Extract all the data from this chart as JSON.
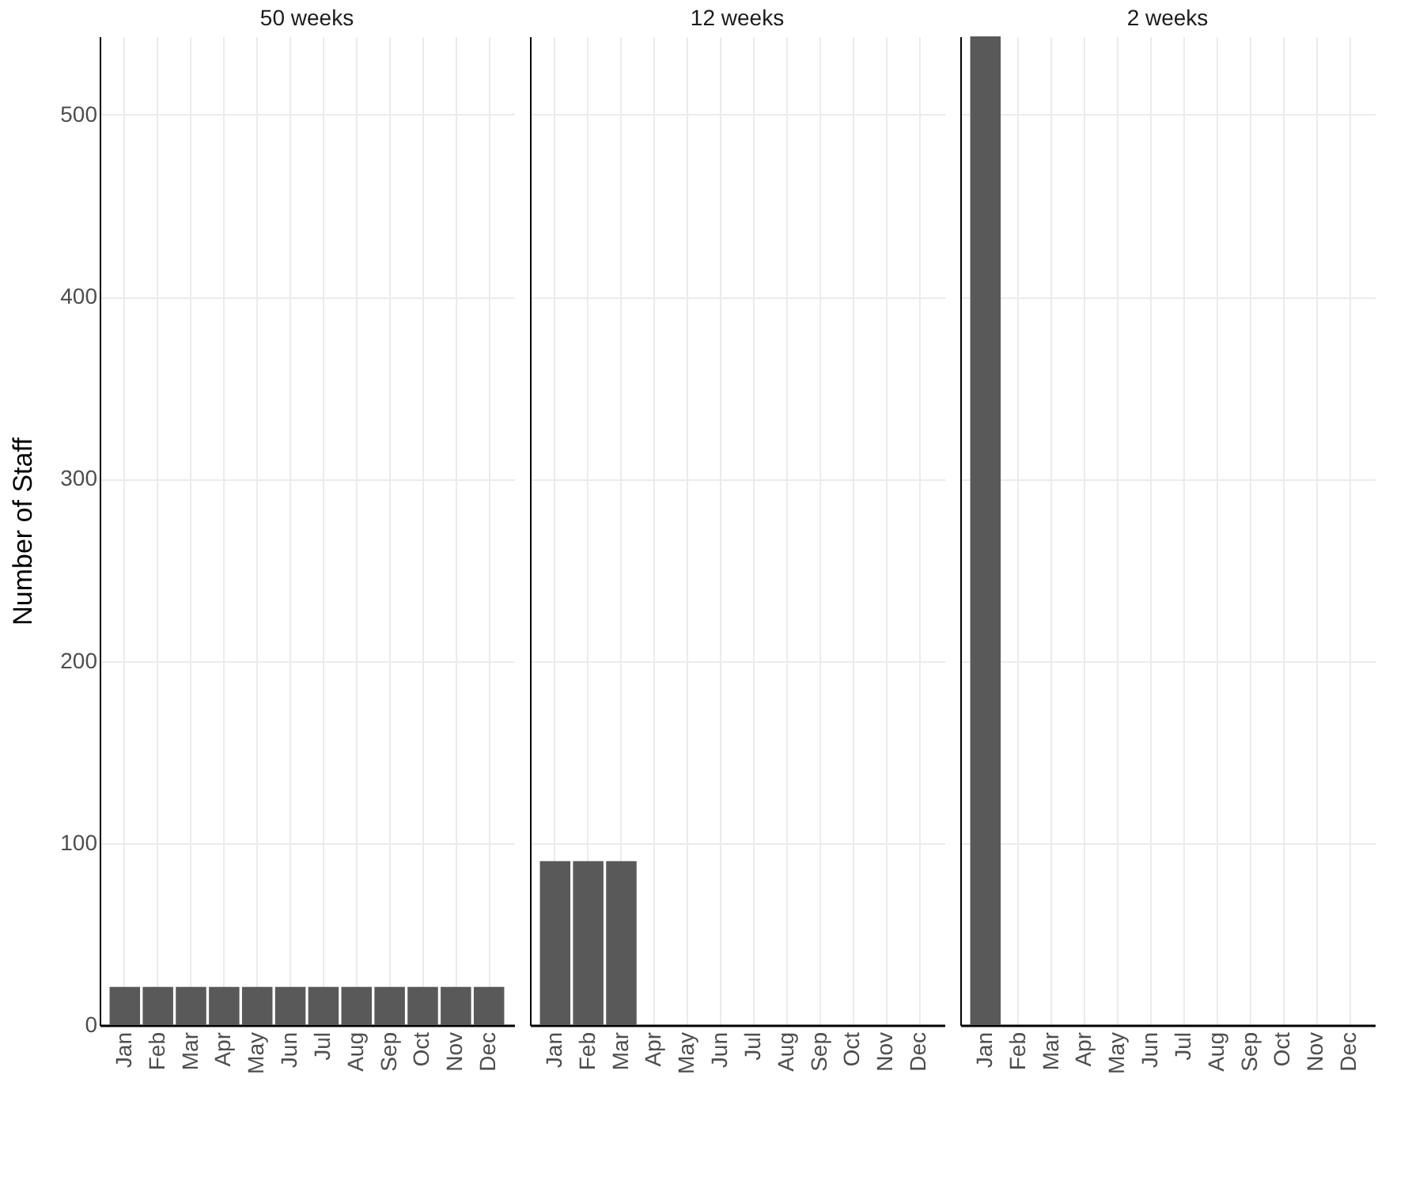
{
  "chart_data": [
    {
      "type": "bar",
      "title": "50 weeks",
      "ylabel": "Number of Staff",
      "categories": [
        "Jan",
        "Feb",
        "Mar",
        "Apr",
        "May",
        "Jun",
        "Jul",
        "Aug",
        "Sep",
        "Oct",
        "Nov",
        "Dec"
      ],
      "values": [
        21,
        21,
        21,
        21,
        21,
        21,
        21,
        21,
        21,
        21,
        21,
        21
      ],
      "color": "#595959",
      "ylim": [
        0,
        543
      ],
      "yticks": [
        0,
        100,
        200,
        300,
        400,
        500
      ],
      "grid": true
    },
    {
      "type": "bar",
      "title": "12 weeks",
      "categories": [
        "Jan",
        "Feb",
        "Mar",
        "Apr",
        "May",
        "Jun",
        "Jul",
        "Aug",
        "Sep",
        "Oct",
        "Nov",
        "Dec"
      ],
      "values": [
        90,
        90,
        90,
        0,
        0,
        0,
        0,
        0,
        0,
        0,
        0,
        0
      ],
      "color": "#595959",
      "ylim": [
        0,
        543
      ],
      "yticks": [
        0,
        100,
        200,
        300,
        400,
        500
      ],
      "grid": true,
      "tick_labels": "x"
    },
    {
      "type": "bar",
      "title": "2 weeks",
      "categories": [
        "Jan",
        "Feb",
        "Mar",
        "Apr",
        "May",
        "Jun",
        "Jul",
        "Aug",
        "Sep",
        "Oct",
        "Nov",
        "Dec"
      ],
      "values": [
        543,
        0,
        0,
        0,
        0,
        0,
        0,
        0,
        0,
        0,
        0,
        0
      ],
      "color": "#595959",
      "ylim": [
        0,
        543
      ],
      "yticks": [
        0,
        100,
        200,
        300,
        400,
        500
      ],
      "grid": true,
      "tick_labels": "x"
    }
  ]
}
